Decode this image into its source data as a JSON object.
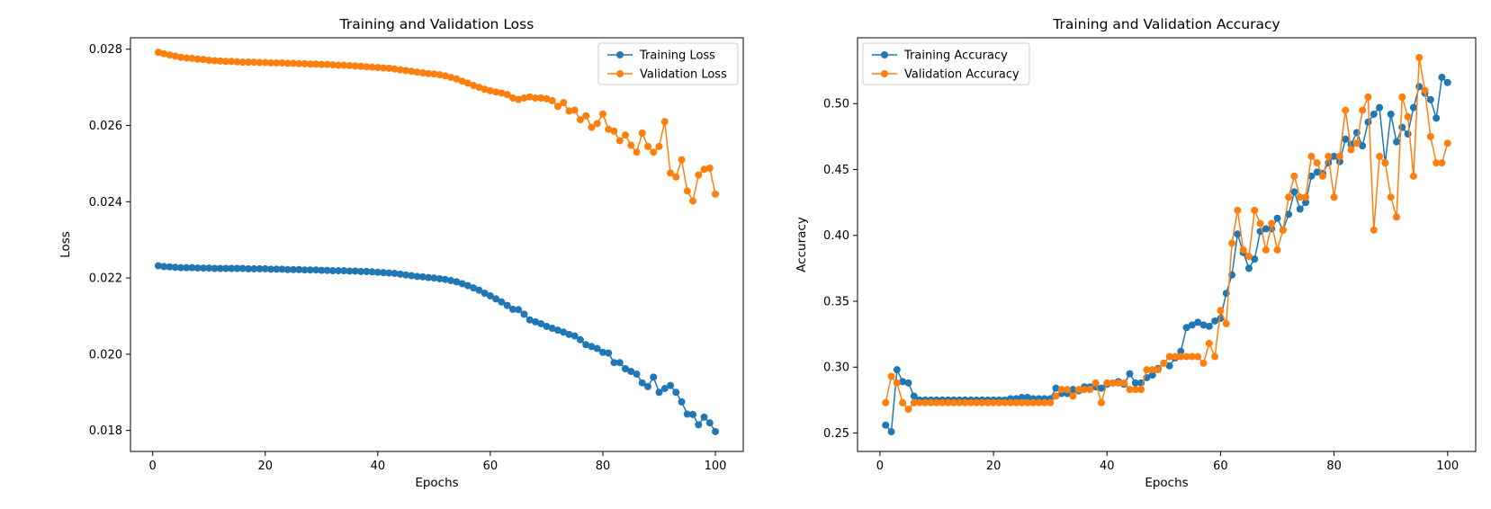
{
  "chart_data": [
    {
      "type": "line",
      "title": "Training and Validation Loss",
      "xlabel": "Epochs",
      "ylabel": "Loss",
      "xlim": [
        -3.95,
        104.95
      ],
      "ylim": [
        0.01745,
        0.0283
      ],
      "xticks": [
        0,
        20,
        40,
        60,
        80,
        100
      ],
      "xtick_labels": [
        "0",
        "20",
        "40",
        "60",
        "80",
        "100"
      ],
      "yticks": [
        0.018,
        0.02,
        0.022,
        0.024,
        0.026,
        0.028
      ],
      "ytick_labels": [
        "0.018",
        "0.020",
        "0.022",
        "0.024",
        "0.026",
        "0.028"
      ],
      "legend_position": "top-right",
      "x": [
        1,
        2,
        3,
        4,
        5,
        6,
        7,
        8,
        9,
        10,
        11,
        12,
        13,
        14,
        15,
        16,
        17,
        18,
        19,
        20,
        21,
        22,
        23,
        24,
        25,
        26,
        27,
        28,
        29,
        30,
        31,
        32,
        33,
        34,
        35,
        36,
        37,
        38,
        39,
        40,
        41,
        42,
        43,
        44,
        45,
        46,
        47,
        48,
        49,
        50,
        51,
        52,
        53,
        54,
        55,
        56,
        57,
        58,
        59,
        60,
        61,
        62,
        63,
        64,
        65,
        66,
        67,
        68,
        69,
        70,
        71,
        72,
        73,
        74,
        75,
        76,
        77,
        78,
        79,
        80,
        81,
        82,
        83,
        84,
        85,
        86,
        87,
        88,
        89,
        90,
        91,
        92,
        93,
        94,
        95,
        96,
        97,
        98,
        99,
        100
      ],
      "series": [
        {
          "name": "Training Loss",
          "color": "#1f77b4",
          "values": [
            0.02232,
            0.0223,
            0.02229,
            0.02228,
            0.02227,
            0.02227,
            0.02227,
            0.02226,
            0.02226,
            0.02226,
            0.02225,
            0.02225,
            0.02225,
            0.02225,
            0.02225,
            0.02225,
            0.02224,
            0.02224,
            0.02224,
            0.02224,
            0.02223,
            0.02223,
            0.02223,
            0.02222,
            0.02222,
            0.02222,
            0.02221,
            0.02221,
            0.02221,
            0.0222,
            0.0222,
            0.02219,
            0.02219,
            0.02219,
            0.02218,
            0.02218,
            0.02217,
            0.02217,
            0.02216,
            0.02215,
            0.02214,
            0.02213,
            0.02212,
            0.0221,
            0.02208,
            0.02206,
            0.02204,
            0.02203,
            0.02201,
            0.022,
            0.02198,
            0.02196,
            0.02193,
            0.0219,
            0.02185,
            0.0218,
            0.02174,
            0.02168,
            0.0216,
            0.02153,
            0.02145,
            0.02137,
            0.02128,
            0.02118,
            0.02117,
            0.02105,
            0.0209,
            0.02085,
            0.0208,
            0.02073,
            0.02068,
            0.02063,
            0.02058,
            0.02052,
            0.02048,
            0.02038,
            0.02025,
            0.0202,
            0.02015,
            0.02005,
            0.02003,
            0.01978,
            0.01978,
            0.01962,
            0.01955,
            0.01948,
            0.01925,
            0.01915,
            0.0194,
            0.019,
            0.0191,
            0.01918,
            0.019,
            0.01875,
            0.01843,
            0.01842,
            0.01815,
            0.01835,
            0.0182,
            0.01797
          ]
        },
        {
          "name": "Validation Loss",
          "color": "#ff7f0e",
          "values": [
            0.02792,
            0.02788,
            0.02785,
            0.02782,
            0.02779,
            0.02777,
            0.02776,
            0.02774,
            0.02773,
            0.02771,
            0.0277,
            0.02769,
            0.02768,
            0.02768,
            0.02767,
            0.02766,
            0.02766,
            0.02766,
            0.02765,
            0.02765,
            0.02764,
            0.02764,
            0.02764,
            0.02763,
            0.02763,
            0.02762,
            0.02762,
            0.02761,
            0.02761,
            0.0276,
            0.0276,
            0.02759,
            0.02758,
            0.02758,
            0.02757,
            0.02756,
            0.02755,
            0.02754,
            0.02753,
            0.02752,
            0.02751,
            0.0275,
            0.02748,
            0.02746,
            0.02744,
            0.02742,
            0.0274,
            0.02738,
            0.02736,
            0.02735,
            0.02733,
            0.0273,
            0.02726,
            0.02722,
            0.02716,
            0.02711,
            0.02705,
            0.027,
            0.02695,
            0.02691,
            0.02688,
            0.02685,
            0.02681,
            0.02672,
            0.02668,
            0.02672,
            0.02675,
            0.02672,
            0.02672,
            0.0267,
            0.02665,
            0.0265,
            0.0266,
            0.02638,
            0.0264,
            0.02615,
            0.02625,
            0.02595,
            0.02605,
            0.0263,
            0.0259,
            0.02585,
            0.0256,
            0.02575,
            0.02548,
            0.0253,
            0.0258,
            0.02545,
            0.0253,
            0.02545,
            0.0261,
            0.02475,
            0.02465,
            0.0251,
            0.02428,
            0.02402,
            0.0247,
            0.02485,
            0.02488,
            0.0242
          ]
        }
      ]
    },
    {
      "type": "line",
      "title": "Training and Validation Accuracy",
      "xlabel": "Epochs",
      "ylabel": "Accuracy",
      "xlim": [
        -3.95,
        104.95
      ],
      "ylim": [
        0.236,
        0.55
      ],
      "xticks": [
        0,
        20,
        40,
        60,
        80,
        100
      ],
      "xtick_labels": [
        "0",
        "20",
        "40",
        "60",
        "80",
        "100"
      ],
      "yticks": [
        0.25,
        0.3,
        0.35,
        0.4,
        0.45,
        0.5
      ],
      "ytick_labels": [
        "0.25",
        "0.30",
        "0.35",
        "0.40",
        "0.45",
        "0.50"
      ],
      "legend_position": "top-left",
      "x": [
        1,
        2,
        3,
        4,
        5,
        6,
        7,
        8,
        9,
        10,
        11,
        12,
        13,
        14,
        15,
        16,
        17,
        18,
        19,
        20,
        21,
        22,
        23,
        24,
        25,
        26,
        27,
        28,
        29,
        30,
        31,
        32,
        33,
        34,
        35,
        36,
        37,
        38,
        39,
        40,
        41,
        42,
        43,
        44,
        45,
        46,
        47,
        48,
        49,
        50,
        51,
        52,
        53,
        54,
        55,
        56,
        57,
        58,
        59,
        60,
        61,
        62,
        63,
        64,
        65,
        66,
        67,
        68,
        69,
        70,
        71,
        72,
        73,
        74,
        75,
        76,
        77,
        78,
        79,
        80,
        81,
        82,
        83,
        84,
        85,
        86,
        87,
        88,
        89,
        90,
        91,
        92,
        93,
        94,
        95,
        96,
        97,
        98,
        99,
        100
      ],
      "series": [
        {
          "name": "Training Accuracy",
          "color": "#1f77b4",
          "values": [
            0.256,
            0.251,
            0.298,
            0.289,
            0.288,
            0.278,
            0.275,
            0.275,
            0.275,
            0.275,
            0.275,
            0.275,
            0.275,
            0.275,
            0.275,
            0.275,
            0.275,
            0.275,
            0.275,
            0.275,
            0.275,
            0.275,
            0.276,
            0.276,
            0.277,
            0.277,
            0.276,
            0.276,
            0.276,
            0.276,
            0.284,
            0.28,
            0.28,
            0.283,
            0.282,
            0.285,
            0.285,
            0.285,
            0.284,
            0.287,
            0.288,
            0.289,
            0.287,
            0.295,
            0.288,
            0.288,
            0.292,
            0.294,
            0.299,
            0.303,
            0.301,
            0.307,
            0.312,
            0.33,
            0.332,
            0.334,
            0.332,
            0.331,
            0.335,
            0.337,
            0.356,
            0.37,
            0.401,
            0.387,
            0.375,
            0.382,
            0.403,
            0.405,
            0.405,
            0.413,
            0.404,
            0.416,
            0.433,
            0.42,
            0.425,
            0.445,
            0.448,
            0.447,
            0.455,
            0.46,
            0.456,
            0.473,
            0.469,
            0.478,
            0.468,
            0.486,
            0.492,
            0.497,
            0.455,
            0.492,
            0.471,
            0.482,
            0.477,
            0.497,
            0.513,
            0.508,
            0.503,
            0.489,
            0.52,
            0.516
          ]
        },
        {
          "name": "Validation Accuracy",
          "color": "#ff7f0e",
          "values": [
            0.273,
            0.293,
            0.288,
            0.273,
            0.268,
            0.273,
            0.273,
            0.273,
            0.273,
            0.273,
            0.273,
            0.273,
            0.273,
            0.273,
            0.273,
            0.273,
            0.273,
            0.273,
            0.273,
            0.273,
            0.273,
            0.273,
            0.273,
            0.273,
            0.273,
            0.273,
            0.273,
            0.273,
            0.273,
            0.273,
            0.278,
            0.283,
            0.283,
            0.278,
            0.283,
            0.283,
            0.283,
            0.288,
            0.273,
            0.288,
            0.288,
            0.288,
            0.288,
            0.283,
            0.283,
            0.283,
            0.298,
            0.298,
            0.298,
            0.303,
            0.308,
            0.308,
            0.308,
            0.308,
            0.308,
            0.308,
            0.303,
            0.318,
            0.308,
            0.343,
            0.333,
            0.394,
            0.419,
            0.389,
            0.384,
            0.419,
            0.409,
            0.389,
            0.409,
            0.389,
            0.404,
            0.429,
            0.445,
            0.429,
            0.429,
            0.46,
            0.455,
            0.445,
            0.46,
            0.429,
            0.46,
            0.495,
            0.465,
            0.47,
            0.495,
            0.505,
            0.404,
            0.46,
            0.455,
            0.429,
            0.414,
            0.505,
            0.49,
            0.445,
            0.535,
            0.51,
            0.475,
            0.455,
            0.455,
            0.47
          ]
        }
      ]
    }
  ]
}
